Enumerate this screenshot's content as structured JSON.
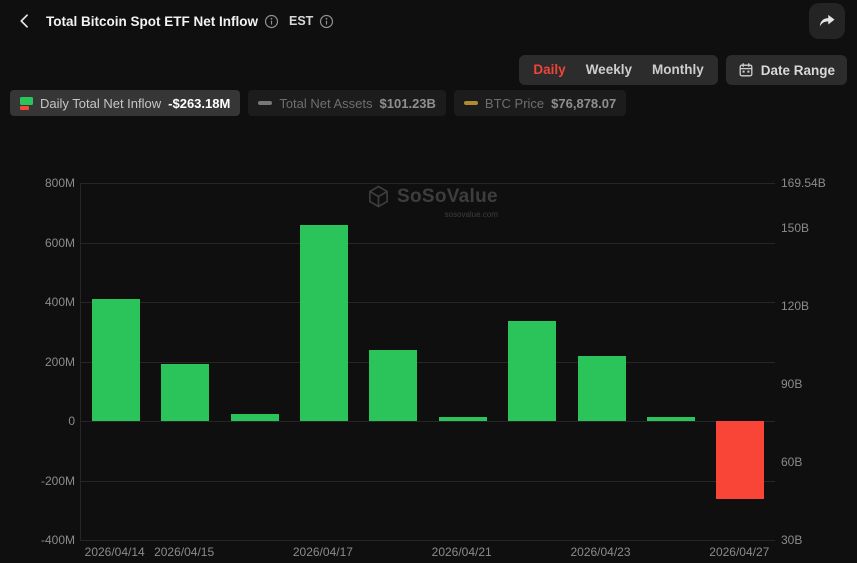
{
  "header": {
    "title": "Total Bitcoin Spot ETF Net Inflow",
    "timezone": "EST"
  },
  "controls": {
    "tabs": [
      {
        "label": "Daily",
        "active": true
      },
      {
        "label": "Weekly",
        "active": false
      },
      {
        "label": "Monthly",
        "active": false
      }
    ],
    "date_range_label": "Date Range"
  },
  "legend": [
    {
      "label": "Daily Total Net Inflow",
      "value": "-$263.18M",
      "state": "active"
    },
    {
      "label": "Total Net Assets",
      "value": "$101.23B",
      "state": "dimmed"
    },
    {
      "label": "BTC Price",
      "value": "$76,878.07",
      "state": "dimmed"
    }
  ],
  "watermark": {
    "brand": "SoSoValue",
    "domain": "sosovalue.com"
  },
  "colors": {
    "accent_red": "#f04438",
    "bar_positive": "#2bc45a",
    "bar_negative": "#f94438",
    "net_assets_dash": "#787878",
    "btc_price_dash": "#b08a2e"
  },
  "chart_data": {
    "type": "bar",
    "title": "Total Bitcoin Spot ETF Net Inflow",
    "unit": "M (USD millions)",
    "values": [
      410,
      190,
      25,
      660,
      240,
      12,
      335,
      220,
      15,
      -263.18
    ],
    "ylim": [
      -400,
      800
    ],
    "grid": true,
    "legend_position": "top",
    "colors": {
      "positive": "#2bc45a",
      "negative": "#f94438"
    },
    "left_axis": [
      {
        "label": "800M",
        "value": 800
      },
      {
        "label": "600M",
        "value": 600
      },
      {
        "label": "400M",
        "value": 400
      },
      {
        "label": "200M",
        "value": 200
      },
      {
        "label": "0",
        "value": 0
      },
      {
        "label": "-200M",
        "value": -200
      },
      {
        "label": "-400M",
        "value": -400
      }
    ],
    "right_axis": [
      "169.54B",
      "150B",
      "120B",
      "90B",
      "60B",
      "30B"
    ],
    "x_ticks": [
      {
        "index": 0,
        "label": "2026/04/14"
      },
      {
        "index": 1,
        "label": "2026/04/15"
      },
      {
        "index": 3,
        "label": "2026/04/17"
      },
      {
        "index": 5,
        "label": "2026/04/21"
      },
      {
        "index": 7,
        "label": "2026/04/23"
      },
      {
        "index": 9,
        "label": "2026/04/27"
      }
    ]
  }
}
